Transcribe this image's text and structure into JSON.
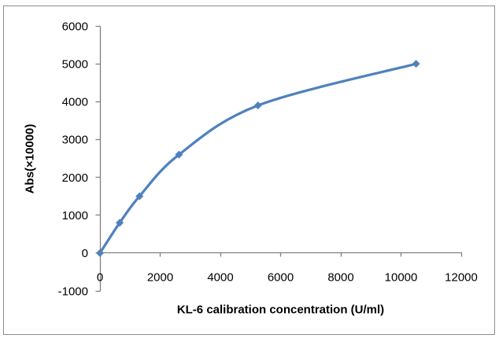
{
  "figure": {
    "background": "#FFFFFF",
    "border_color": "#8C8C8C"
  },
  "chart_data": {
    "type": "line",
    "subtype": "smooth-line-with-diamond-markers",
    "title": "",
    "xlabel": "KL-6 calibration concentration (U/ml)",
    "ylabel": "Abs(×10000)",
    "x": [
      0,
      656,
      1313,
      2625,
      5250,
      10500
    ],
    "y": [
      0,
      800,
      1500,
      2600,
      3900,
      5000
    ],
    "xlim": [
      0,
      12000
    ],
    "ylim": [
      -1000,
      6000
    ],
    "x_ticks": [
      0,
      2000,
      4000,
      6000,
      8000,
      10000,
      12000
    ],
    "y_ticks": [
      -1000,
      0,
      1000,
      2000,
      3000,
      4000,
      5000,
      6000
    ],
    "grid": false,
    "legend_position": "none",
    "line_color": "#4F81BD",
    "marker": "diamond",
    "marker_color": "#4F81BD",
    "axis_color": "#808080",
    "text_color": "#000000"
  }
}
